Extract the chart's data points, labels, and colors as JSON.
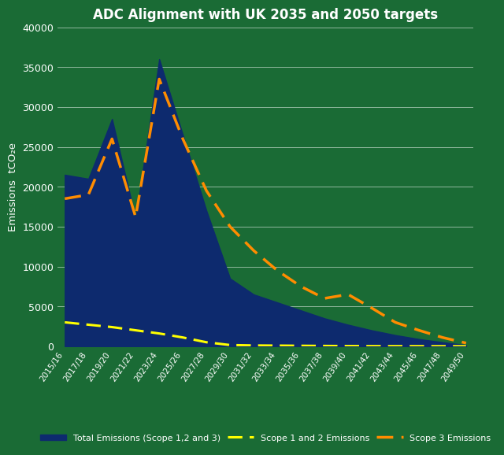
{
  "title": "ADC Alignment with UK 2035 and 2050 targets",
  "ylabel": "Emissions  tCO₂e",
  "background_color": "#1a6b35",
  "plot_bg_color": "#1a6b35",
  "ylim": [
    0,
    40000
  ],
  "yticks": [
    0,
    5000,
    10000,
    15000,
    20000,
    25000,
    30000,
    35000,
    40000
  ],
  "x_labels": [
    "2015/16",
    "2017/18",
    "2019/20",
    "2021/22",
    "2023/24",
    "2025/26",
    "2027/28",
    "2029/30",
    "2031/32",
    "2033/34",
    "2035/36",
    "2037/38",
    "2039/40",
    "2041/42",
    "2043/44",
    "2045/46",
    "2047/48",
    "2049/50"
  ],
  "total_emissions": [
    21500,
    21000,
    28500,
    16000,
    36000,
    26500,
    17000,
    8500,
    6500,
    5500,
    4500,
    3500,
    2700,
    2000,
    1400,
    900,
    500,
    150
  ],
  "scope12_emissions": [
    3000,
    2700,
    2400,
    2000,
    1600,
    1100,
    500,
    150,
    100,
    80,
    60,
    40,
    25,
    15,
    10,
    8,
    3,
    0
  ],
  "scope3_emissions": [
    18500,
    19000,
    26000,
    16200,
    33500,
    26000,
    19500,
    15000,
    12000,
    9500,
    7500,
    6000,
    6500,
    4800,
    3000,
    2000,
    1100,
    400
  ],
  "fill_color": "#0d2a6e",
  "scope12_color": "#ffff00",
  "scope3_color": "#ff8c00",
  "grid_color": "#ffffff",
  "text_color": "#ffffff",
  "legend_labels": [
    "Total Emissions (Scope 1,2 and 3)",
    "Scope 1 and 2 Emissions",
    "Scope 3 Emissions"
  ]
}
